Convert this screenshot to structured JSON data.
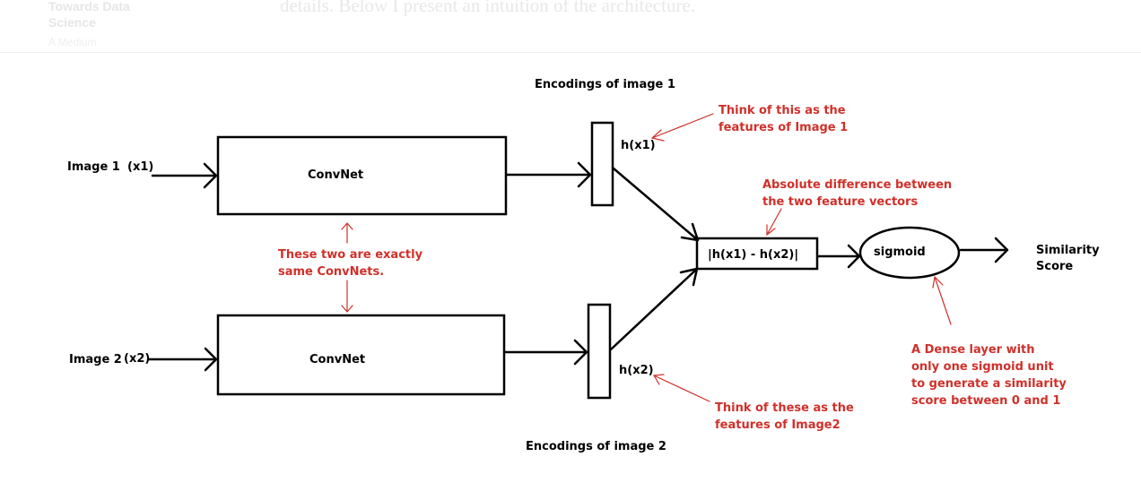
{
  "header": {
    "publication_line1": "Towards Data",
    "publication_line2": "Science",
    "publication_sub": "A Medium",
    "article_text": "details. Below I present an intuition of the architecture."
  },
  "diagram": {
    "encodings_top": "Encodings of image 1",
    "encodings_bottom": "Encodings of image 2",
    "image1_label": "Image 1",
    "image1_var": "(x1)",
    "image2_label": "Image 2",
    "image2_var": "(x2)",
    "convnet_top": "ConvNet",
    "convnet_bottom": "ConvNet",
    "h1_label": "h(x1)",
    "h2_label": "h(x2)",
    "diff_label": "|h(x1) - h(x2)|",
    "sigmoid_label": "sigmoid",
    "output_line1": "Similarity",
    "output_line2": "Score",
    "note_h1_line1": "Think of this as the",
    "note_h1_line2": "features of Image 1",
    "note_h2_line1": "Think of these as the",
    "note_h2_line2": "features of Image2",
    "note_diff_line1": "Absolute difference between",
    "note_diff_line2": "the two feature vectors",
    "note_same_line1": "These two are exactly",
    "note_same_line2": "same ConvNets.",
    "note_dense_line1": "A Dense layer with",
    "note_dense_line2": "only one sigmoid unit",
    "note_dense_line3": "to generate a similarity",
    "note_dense_line4": "score between 0 and 1"
  },
  "colors": {
    "annotation": "#d0302a",
    "diagram_ink": "#000000",
    "faded_header_text": "#e6e6e6"
  }
}
